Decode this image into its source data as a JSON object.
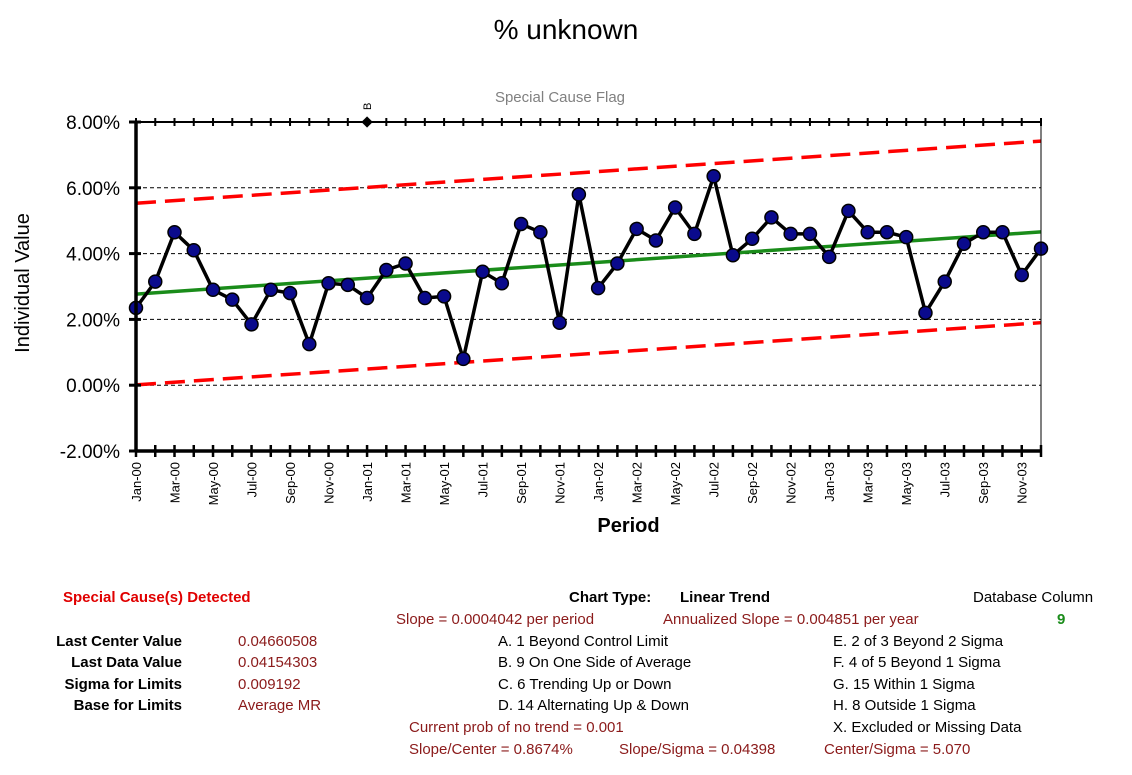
{
  "title": "% unknown",
  "flag_title": "Special Cause Flag",
  "flag_marker": {
    "label": "B",
    "x_index": 12
  },
  "chart_data": {
    "type": "line",
    "title": "% unknown",
    "xlabel": "Period",
    "ylabel": "Individual Value",
    "ylim": [
      -0.02,
      0.08
    ],
    "yticks": [
      "-2.00%",
      "0.00%",
      "2.00%",
      "4.00%",
      "6.00%",
      "8.00%"
    ],
    "ytick_values": [
      -0.02,
      0.0,
      0.02,
      0.04,
      0.06,
      0.08
    ],
    "xtick_labels": [
      "Jan-00",
      "Mar-00",
      "May-00",
      "Jul-00",
      "Sep-00",
      "Nov-00",
      "Jan-01",
      "Mar-01",
      "May-01",
      "Jul-01",
      "Sep-01",
      "Nov-01",
      "Jan-02",
      "Mar-02",
      "May-02",
      "Jul-02",
      "Sep-02",
      "Nov-02",
      "Jan-03",
      "Mar-03",
      "May-03",
      "Jul-03",
      "Sep-03",
      "Nov-03"
    ],
    "x_count": 48,
    "grid": "horizontal dashed",
    "series": [
      {
        "values": [
          0.0235,
          0.0315,
          0.0465,
          0.041,
          0.029,
          0.026,
          0.0185,
          0.029,
          0.028,
          0.0125,
          0.031,
          0.0305,
          0.0265,
          0.035,
          0.037,
          0.0265,
          0.027,
          0.008,
          0.0345,
          0.031,
          0.049,
          0.0465,
          0.019,
          0.058,
          0.0295,
          0.037,
          0.0475,
          0.044,
          0.054,
          0.046,
          0.0635,
          0.0395,
          0.0445,
          0.051,
          0.046,
          0.046,
          0.039,
          0.053,
          0.0465,
          0.0465,
          0.045,
          0.022,
          0.0315,
          0.043,
          0.0465,
          0.0465,
          0.0335,
          0.0415
        ]
      },
      {
        "start": 0.0277,
        "end": 0.0466
      },
      {
        "start": 0.0553,
        "end": 0.0742
      },
      {
        "start": 0.0001,
        "end": 0.019
      }
    ]
  },
  "footer": {
    "special_causes": "Special Cause(s) Detected",
    "chart_type_label": "Chart Type:",
    "chart_type_value": "Linear Trend",
    "db_column_label": "Database Column",
    "db_column_value": "9",
    "slope": "Slope = 0.0004042 per period",
    "annualized_slope": "Annualized Slope = 0.004851 per year",
    "stats": [
      {
        "label": "Last Center Value",
        "value": "0.04660508"
      },
      {
        "label": "Last Data Value",
        "value": "0.04154303"
      },
      {
        "label": "Sigma for Limits",
        "value": "0.009192"
      },
      {
        "label": "Base for Limits",
        "value": "Average MR"
      }
    ],
    "rules_left": [
      "A.  1 Beyond Control Limit",
      "B.  9 On One Side of Average",
      "C.  6 Trending Up or Down",
      "D.  14 Alternating  Up & Down"
    ],
    "rules_right": [
      "E.   2 of 3 Beyond 2 Sigma",
      "F.   4 of 5 Beyond 1 Sigma",
      "G.   15 Within 1 Sigma",
      "H.   8 Outside 1 Sigma",
      "X.   Excluded or Missing Data"
    ],
    "prob_no_trend": "Current prob of no trend = 0.001",
    "slope_center": "Slope/Center = 0.8674%",
    "slope_sigma": "Slope/Sigma = 0.04398",
    "center_sigma": "Center/Sigma = 5.070"
  },
  "colors": {
    "data_line": "#000000",
    "marker_fill": "#0a0a8c",
    "trend_line": "#1a8c1a",
    "limit_lines": "#ff0000",
    "stat_text": "#8b1a1a",
    "flag_text": "#808080"
  }
}
